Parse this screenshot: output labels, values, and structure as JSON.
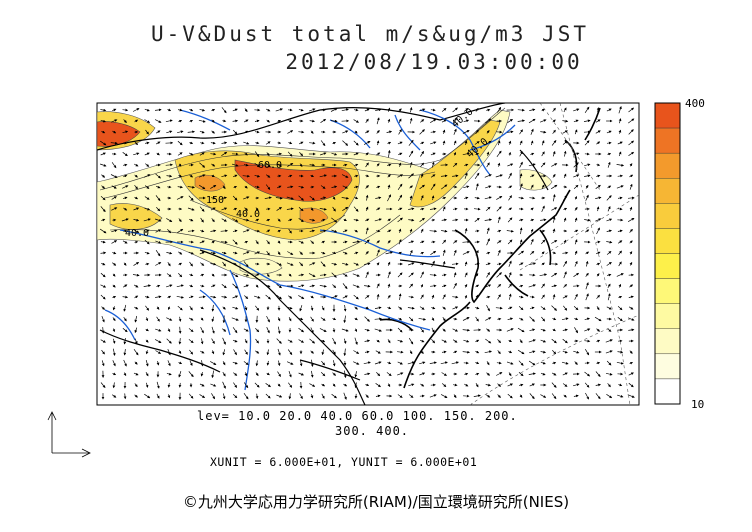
{
  "title_line1": "U-V&Dust total m/s&ug/m3 JST",
  "title_line2": "2012/08/19.03:00:00",
  "legend": {
    "max_label": "400",
    "min_label": "10",
    "colors": [
      "#e8541c",
      "#ee7424",
      "#f39a2c",
      "#f6b634",
      "#f9cc3c",
      "#fbe040",
      "#fdf04a",
      "#fef878",
      "#fefaa2",
      "#fefbc4",
      "#fefde0",
      "#ffffff"
    ]
  },
  "levels": {
    "line1": "lev= 10.0 20.0 40.0 60.0 100. 150. 200.",
    "line2": "300. 400."
  },
  "units_text": "XUNIT = 6.000E+01, YUNIT = 6.000E+01",
  "credit": "©九州大学応用力学研究所(RIAM)/国立環境研究所(NIES)",
  "contour_labels": [
    "40.0",
    "40.0",
    "60.0",
    "150",
    "40.0",
    "40.0"
  ],
  "colors": {
    "coast": "#000000",
    "rivers": "#1a5fd6",
    "dust_high": "#e8541c",
    "dust_mid": "#f6c23a",
    "dust_low": "#fefbc4"
  }
}
